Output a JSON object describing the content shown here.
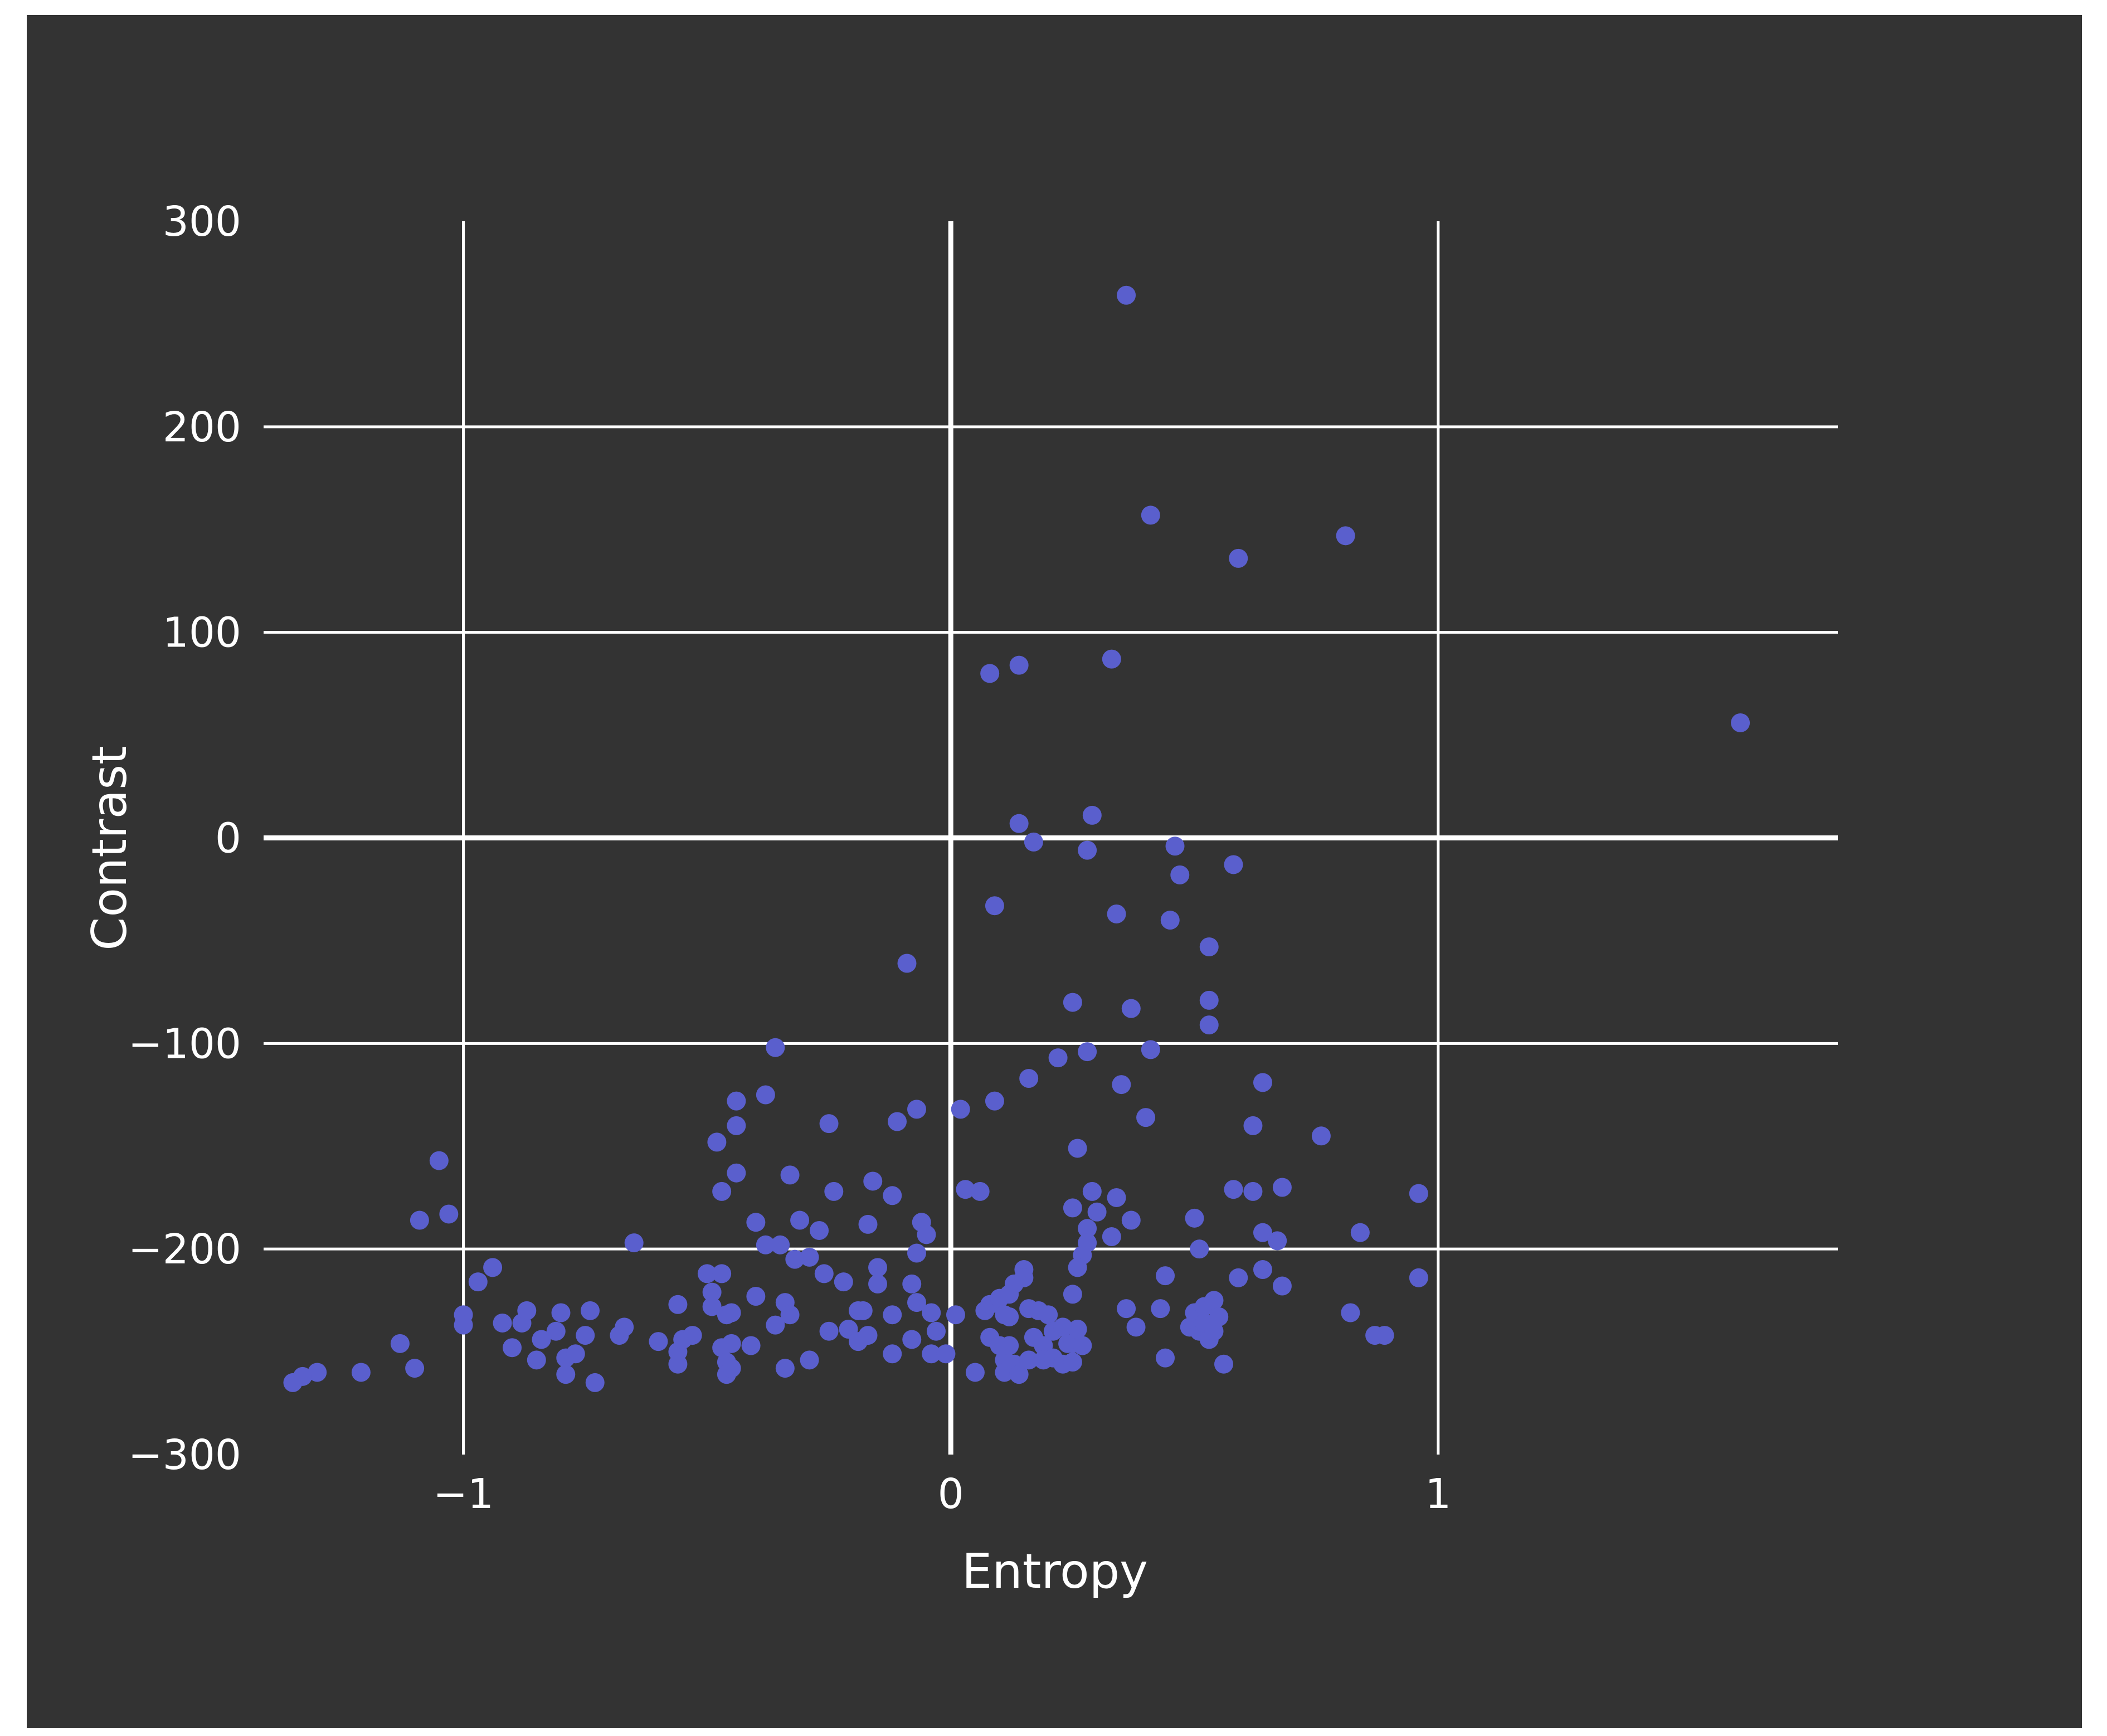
{
  "chart_data": {
    "type": "scatter",
    "title": "",
    "xlabel": "Entropy",
    "ylabel": "Contrast",
    "xlim": [
      -1.41,
      1.82
    ],
    "ylim": [
      -300,
      300
    ],
    "x_ticks": [
      -1,
      0,
      1
    ],
    "x_tick_labels": [
      "−1",
      "0",
      "1"
    ],
    "y_ticks": [
      -300,
      -200,
      -100,
      0,
      100,
      200,
      300
    ],
    "y_tick_labels": [
      "−300",
      "−200",
      "−100",
      "0",
      "100",
      "200",
      "300"
    ],
    "grid": true,
    "legend": "none",
    "colors": {
      "background": "#333333",
      "marker": "#5a5fcd",
      "grid": "#ffffff",
      "text": "#ffffff"
    },
    "series": [
      {
        "points": [
          [
            0.36,
            264
          ],
          [
            0.41,
            157
          ],
          [
            0.59,
            136
          ],
          [
            0.81,
            147
          ],
          [
            1.62,
            56
          ],
          [
            0.08,
            80
          ],
          [
            0.14,
            84
          ],
          [
            0.33,
            87
          ],
          [
            0.14,
            7
          ],
          [
            0.29,
            11
          ],
          [
            0.17,
            -2
          ],
          [
            0.28,
            -6
          ],
          [
            0.46,
            -4
          ],
          [
            0.47,
            -18
          ],
          [
            0.58,
            -13
          ],
          [
            0.09,
            -33
          ],
          [
            0.34,
            -37
          ],
          [
            0.45,
            -40
          ],
          [
            0.53,
            -53
          ],
          [
            -0.09,
            -61
          ],
          [
            0.25,
            -80
          ],
          [
            0.37,
            -83
          ],
          [
            0.53,
            -79
          ],
          [
            0.53,
            -91
          ],
          [
            0.41,
            -103
          ],
          [
            0.28,
            -104
          ],
          [
            0.22,
            -107
          ],
          [
            -0.36,
            -102
          ],
          [
            0.16,
            -117
          ],
          [
            0.35,
            -120
          ],
          [
            0.09,
            -128
          ],
          [
            -0.38,
            -125
          ],
          [
            -0.44,
            -128
          ],
          [
            0.64,
            -119
          ],
          [
            -0.44,
            -140
          ],
          [
            -0.48,
            -148
          ],
          [
            -0.25,
            -139
          ],
          [
            -0.11,
            -138
          ],
          [
            -0.07,
            -132
          ],
          [
            0.02,
            -132
          ],
          [
            0.4,
            -136
          ],
          [
            0.62,
            -140
          ],
          [
            0.76,
            -145
          ],
          [
            0.26,
            -151
          ],
          [
            -0.44,
            -163
          ],
          [
            -0.33,
            -164
          ],
          [
            -0.47,
            -172
          ],
          [
            -0.24,
            -172
          ],
          [
            -0.16,
            -167
          ],
          [
            -0.12,
            -174
          ],
          [
            0.03,
            -171
          ],
          [
            0.06,
            -172
          ],
          [
            0.29,
            -172
          ],
          [
            0.34,
            -175
          ],
          [
            0.25,
            -180
          ],
          [
            0.3,
            -182
          ],
          [
            0.37,
            -186
          ],
          [
            0.5,
            -185
          ],
          [
            0.58,
            -171
          ],
          [
            0.62,
            -172
          ],
          [
            0.68,
            -170
          ],
          [
            0.96,
            -173
          ],
          [
            0.84,
            -192
          ],
          [
            0.64,
            -192
          ],
          [
            0.67,
            -196
          ],
          [
            0.51,
            -200
          ],
          [
            0.33,
            -194
          ],
          [
            0.28,
            -190
          ],
          [
            0.28,
            -197
          ],
          [
            0.27,
            -203
          ],
          [
            0.26,
            -209
          ],
          [
            0.15,
            -210
          ],
          [
            0.13,
            -217
          ],
          [
            -0.4,
            -187
          ],
          [
            -0.35,
            -198
          ],
          [
            -0.38,
            -198
          ],
          [
            -0.31,
            -186
          ],
          [
            -0.27,
            -191
          ],
          [
            -0.17,
            -188
          ],
          [
            -0.06,
            -187
          ],
          [
            -0.05,
            -193
          ],
          [
            -0.07,
            -202
          ],
          [
            -0.65,
            -197
          ],
          [
            -1.05,
            -157
          ],
          [
            -1.03,
            -183
          ],
          [
            -1.09,
            -186
          ],
          [
            -0.94,
            -209
          ],
          [
            -0.97,
            -216
          ],
          [
            -1.0,
            -232
          ],
          [
            -1.0,
            -237
          ],
          [
            -0.92,
            -236
          ],
          [
            -0.88,
            -236
          ],
          [
            -0.87,
            -230
          ],
          [
            -0.9,
            -248
          ],
          [
            -0.85,
            -254
          ],
          [
            -0.84,
            -244
          ],
          [
            -0.81,
            -240
          ],
          [
            -0.8,
            -231
          ],
          [
            -0.74,
            -230
          ],
          [
            -0.75,
            -242
          ],
          [
            -0.79,
            -253
          ],
          [
            -0.77,
            -251
          ],
          [
            -0.79,
            -261
          ],
          [
            -0.73,
            -265
          ],
          [
            -0.68,
            -242
          ],
          [
            -0.67,
            -238
          ],
          [
            -1.13,
            -246
          ],
          [
            -1.1,
            -258
          ],
          [
            -1.21,
            -260
          ],
          [
            -1.3,
            -260
          ],
          [
            -1.33,
            -262
          ],
          [
            -1.35,
            -265
          ],
          [
            -0.6,
            -245
          ],
          [
            -0.56,
            -250
          ],
          [
            -0.56,
            -256
          ],
          [
            -0.55,
            -244
          ],
          [
            -0.53,
            -242
          ],
          [
            -0.56,
            -227
          ],
          [
            -0.5,
            -212
          ],
          [
            -0.49,
            -221
          ],
          [
            -0.47,
            -212
          ],
          [
            -0.49,
            -228
          ],
          [
            -0.46,
            -232
          ],
          [
            -0.45,
            -231
          ],
          [
            -0.47,
            -248
          ],
          [
            -0.45,
            -246
          ],
          [
            -0.46,
            -255
          ],
          [
            -0.46,
            -261
          ],
          [
            -0.45,
            -258
          ],
          [
            -0.41,
            -247
          ],
          [
            -0.4,
            -223
          ],
          [
            -0.34,
            -226
          ],
          [
            -0.33,
            -232
          ],
          [
            -0.36,
            -237
          ],
          [
            -0.34,
            -258
          ],
          [
            -0.29,
            -254
          ],
          [
            -0.32,
            -205
          ],
          [
            -0.29,
            -204
          ],
          [
            -0.26,
            -212
          ],
          [
            -0.22,
            -216
          ],
          [
            -0.25,
            -240
          ],
          [
            -0.21,
            -239
          ],
          [
            -0.19,
            -245
          ],
          [
            -0.17,
            -242
          ],
          [
            -0.19,
            -230
          ],
          [
            -0.18,
            -230
          ],
          [
            -0.15,
            -209
          ],
          [
            -0.15,
            -217
          ],
          [
            -0.12,
            -232
          ],
          [
            -0.12,
            -251
          ],
          [
            -0.08,
            -217
          ],
          [
            -0.07,
            -226
          ],
          [
            -0.08,
            -244
          ],
          [
            -0.04,
            -231
          ],
          [
            -0.03,
            -240
          ],
          [
            -0.04,
            -251
          ],
          [
            -0.01,
            -251
          ],
          [
            0.01,
            -232
          ],
          [
            0.05,
            -260
          ],
          [
            0.07,
            -230
          ],
          [
            0.08,
            -243
          ],
          [
            0.08,
            -227
          ],
          [
            0.1,
            -224
          ],
          [
            0.11,
            -232
          ],
          [
            0.1,
            -247
          ],
          [
            0.11,
            -254
          ],
          [
            0.11,
            -260
          ],
          [
            0.12,
            -222
          ],
          [
            0.12,
            -233
          ],
          [
            0.12,
            -247
          ],
          [
            0.13,
            -256
          ],
          [
            0.14,
            -261
          ],
          [
            0.15,
            -214
          ],
          [
            0.16,
            -229
          ],
          [
            0.16,
            -254
          ],
          [
            0.17,
            -243
          ],
          [
            0.18,
            -230
          ],
          [
            0.19,
            -247
          ],
          [
            0.19,
            -254
          ],
          [
            0.2,
            -232
          ],
          [
            0.21,
            -240
          ],
          [
            0.21,
            -253
          ],
          [
            0.23,
            -238
          ],
          [
            0.23,
            -256
          ],
          [
            0.24,
            -246
          ],
          [
            0.25,
            -222
          ],
          [
            0.25,
            -246
          ],
          [
            0.25,
            -255
          ],
          [
            0.26,
            -239
          ],
          [
            0.27,
            -247
          ],
          [
            0.36,
            -229
          ],
          [
            0.38,
            -238
          ],
          [
            0.43,
            -229
          ],
          [
            0.44,
            -213
          ],
          [
            0.44,
            -253
          ],
          [
            0.49,
            -238
          ],
          [
            0.5,
            -231
          ],
          [
            0.51,
            -240
          ],
          [
            0.52,
            -236
          ],
          [
            0.52,
            -228
          ],
          [
            0.53,
            -244
          ],
          [
            0.54,
            -225
          ],
          [
            0.54,
            -240
          ],
          [
            0.55,
            -233
          ],
          [
            0.56,
            -256
          ],
          [
            0.59,
            -214
          ],
          [
            0.64,
            -210
          ],
          [
            0.68,
            -218
          ],
          [
            0.82,
            -231
          ],
          [
            0.87,
            -242
          ],
          [
            0.89,
            -242
          ],
          [
            0.96,
            -214
          ]
        ]
      }
    ]
  }
}
